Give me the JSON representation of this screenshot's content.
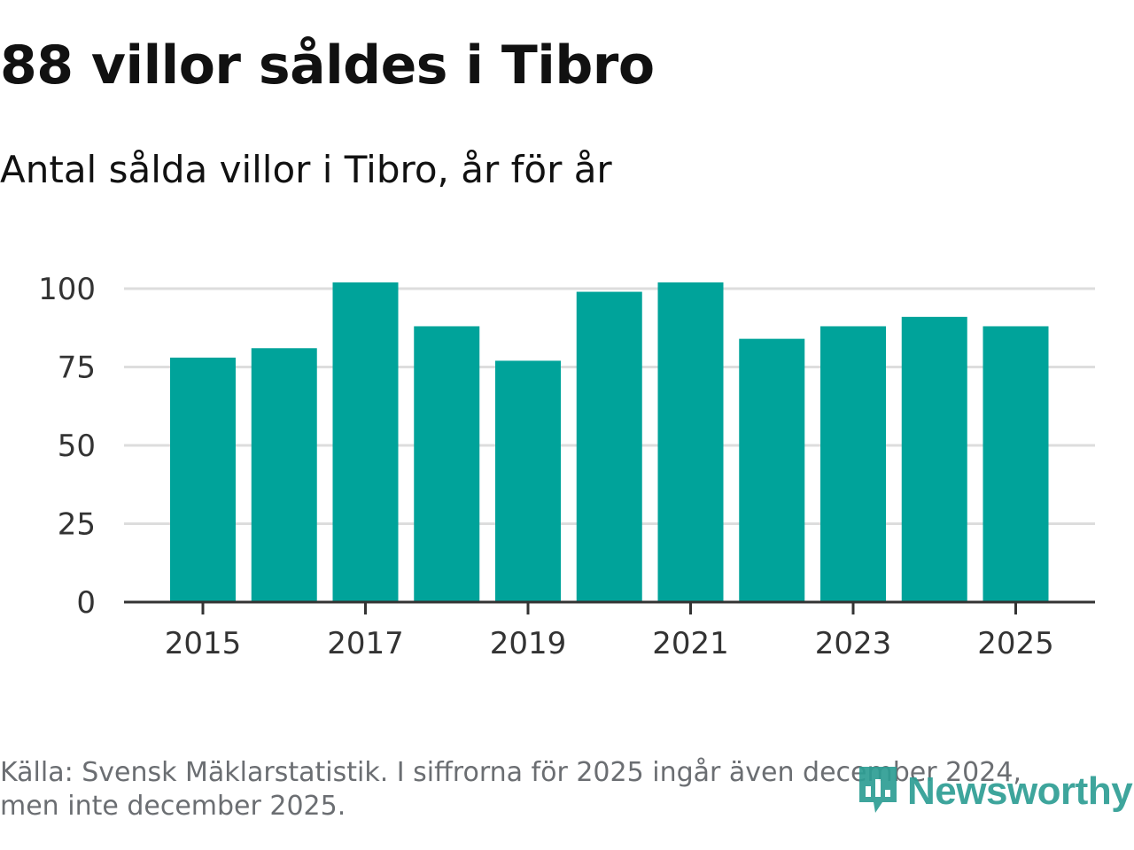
{
  "title": "88 villor såldes i Tibro",
  "subtitle": "Antal sålda villor i Tibro, år för år",
  "footer": {
    "line1": "Källa: Svensk Mäklarstatistik. I siffrorna för 2025 ingår även december 2024,",
    "line2": "men inte december 2025."
  },
  "logo": {
    "text": "Newsworthy",
    "icon": "newsworthy-logo-icon"
  },
  "colors": {
    "bar": "#00a39a",
    "grid": "#dddddd",
    "axis": "#333333",
    "text": "#333333"
  },
  "chart_data": {
    "type": "bar",
    "title": "88 villor såldes i Tibro",
    "subtitle": "Antal sålda villor i Tibro, år för år",
    "xlabel": "",
    "ylabel": "",
    "categories": [
      2015,
      2016,
      2017,
      2018,
      2019,
      2020,
      2021,
      2022,
      2023,
      2024,
      2025
    ],
    "values": [
      78,
      81,
      102,
      88,
      77,
      99,
      102,
      84,
      88,
      91,
      88
    ],
    "ylim": [
      0,
      100
    ],
    "yticks": [
      0,
      25,
      50,
      75,
      100
    ],
    "xticks": [
      2015,
      2017,
      2019,
      2021,
      2023,
      2025
    ],
    "grid": true,
    "legend": "none"
  }
}
